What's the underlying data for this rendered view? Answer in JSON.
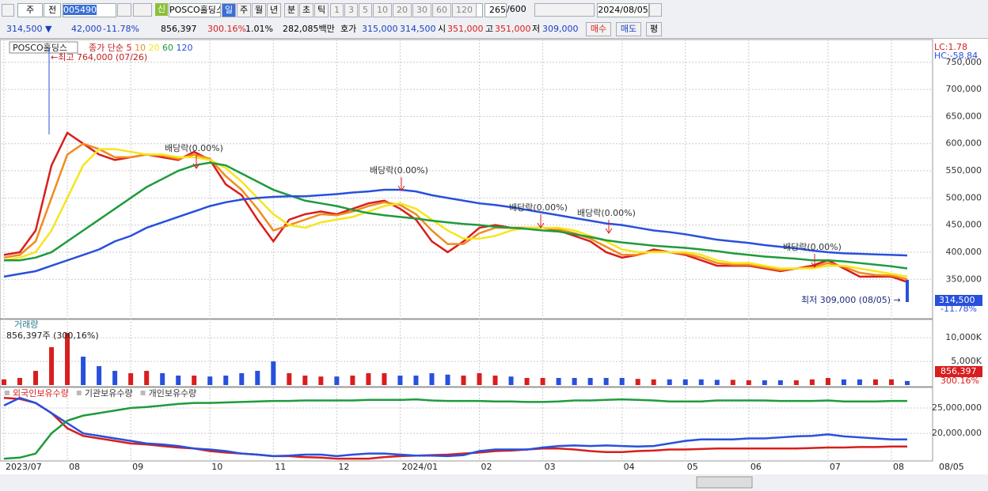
{
  "toolbar": {
    "period": "주",
    "scope": "전",
    "code": "005490",
    "name": "POSCO홀딩스",
    "new_badge": "신",
    "intervals": [
      "일",
      "주",
      "월",
      "년",
      "분",
      "초",
      "틱"
    ],
    "minutes": [
      "1",
      "3",
      "5",
      "10",
      "20",
      "30",
      "60",
      "120"
    ],
    "count": "265",
    "count_max": "/600",
    "date": "2024/08/05"
  },
  "quote": {
    "price": "314,500 ▼",
    "change": "42,000",
    "change_rate": "-11.78%",
    "volume": "856,397",
    "volume_rate": "300.16%",
    "turnover": "1.01%",
    "amount": "282,085백만",
    "bid_label": "호가",
    "ask": "315,000",
    "bid": "314,500",
    "open_label": "시",
    "open": "351,000",
    "high_label": "고",
    "high": "351,000",
    "low_label": "저",
    "low": "309,000",
    "buy": "매수",
    "sell": "매도",
    "eval": "평"
  },
  "chart_data": [
    {
      "type": "line",
      "title": "POSCO홀딩스",
      "legend_label": "종가 단순",
      "categories": [
        "2023/07",
        null,
        null,
        null,
        "08",
        null,
        null,
        null,
        "09",
        null,
        null,
        null,
        null,
        "10",
        null,
        null,
        null,
        "11",
        null,
        null,
        null,
        "12",
        null,
        null,
        null,
        "2024/01",
        null,
        null,
        null,
        null,
        "02",
        null,
        null,
        null,
        "03",
        null,
        null,
        null,
        null,
        "04",
        null,
        null,
        null,
        "05",
        null,
        null,
        null,
        "06",
        null,
        null,
        null,
        null,
        "07",
        null,
        null,
        null,
        "08",
        null
      ],
      "x_end_label": "08/05",
      "series": [
        {
          "name": "5",
          "color": "#d81e1e",
          "values": [
            395000,
            400000,
            440000,
            560000,
            620000,
            600000,
            580000,
            570000,
            575000,
            580000,
            575000,
            570000,
            585000,
            570000,
            525000,
            505000,
            460000,
            420000,
            460000,
            470000,
            475000,
            470000,
            480000,
            490000,
            495000,
            480000,
            460000,
            420000,
            400000,
            420000,
            445000,
            450000,
            445000,
            445000,
            445000,
            440000,
            430000,
            420000,
            400000,
            390000,
            395000,
            405000,
            400000,
            395000,
            385000,
            375000,
            375000,
            375000,
            370000,
            365000,
            370000,
            375000,
            385000,
            370000,
            355000,
            355000,
            355000,
            345000
          ]
        },
        {
          "name": "10",
          "color": "#f08c1e",
          "values": [
            390000,
            395000,
            420000,
            500000,
            580000,
            600000,
            590000,
            575000,
            575000,
            580000,
            578000,
            572000,
            580000,
            572000,
            540000,
            515000,
            480000,
            440000,
            450000,
            460000,
            470000,
            468000,
            475000,
            485000,
            492000,
            487000,
            470000,
            440000,
            415000,
            415000,
            435000,
            445000,
            445000,
            445000,
            445000,
            442000,
            435000,
            425000,
            410000,
            395000,
            395000,
            402000,
            400000,
            397000,
            390000,
            380000,
            377000,
            377000,
            372000,
            367000,
            370000,
            372000,
            380000,
            373000,
            362000,
            358000,
            357000,
            350000
          ]
        },
        {
          "name": "20",
          "color": "#f5e61e",
          "values": [
            385000,
            390000,
            400000,
            440000,
            500000,
            560000,
            590000,
            590000,
            585000,
            580000,
            580000,
            575000,
            575000,
            570000,
            555000,
            530000,
            500000,
            470000,
            450000,
            445000,
            455000,
            460000,
            465000,
            475000,
            485000,
            490000,
            480000,
            460000,
            440000,
            425000,
            425000,
            430000,
            440000,
            445000,
            445000,
            445000,
            440000,
            430000,
            420000,
            405000,
            400000,
            400000,
            400000,
            400000,
            395000,
            385000,
            380000,
            380000,
            375000,
            370000,
            370000,
            370000,
            375000,
            375000,
            370000,
            365000,
            360000,
            355000
          ]
        },
        {
          "name": "60",
          "color": "#1e9b3c",
          "values": [
            385000,
            385000,
            390000,
            400000,
            420000,
            440000,
            460000,
            480000,
            500000,
            520000,
            535000,
            550000,
            560000,
            565000,
            560000,
            545000,
            530000,
            515000,
            505000,
            495000,
            490000,
            485000,
            478000,
            472000,
            468000,
            465000,
            462000,
            458000,
            455000,
            452000,
            450000,
            447000,
            445000,
            443000,
            440000,
            438000,
            433000,
            428000,
            422000,
            418000,
            415000,
            412000,
            410000,
            408000,
            405000,
            402000,
            398000,
            395000,
            392000,
            390000,
            388000,
            385000,
            385000,
            383000,
            380000,
            377000,
            374000,
            370000
          ]
        },
        {
          "name": "120",
          "color": "#2850dc",
          "values": [
            355000,
            360000,
            365000,
            375000,
            385000,
            395000,
            405000,
            420000,
            430000,
            445000,
            455000,
            465000,
            475000,
            485000,
            492000,
            497000,
            500000,
            502000,
            503000,
            503000,
            505000,
            507000,
            510000,
            512000,
            515000,
            515000,
            512000,
            505000,
            500000,
            495000,
            490000,
            487000,
            483000,
            478000,
            473000,
            468000,
            463000,
            458000,
            453000,
            450000,
            445000,
            440000,
            437000,
            433000,
            428000,
            423000,
            420000,
            417000,
            413000,
            410000,
            407000,
            403000,
            400000,
            398000,
            397000,
            396000,
            395000,
            394000
          ]
        }
      ],
      "ylim": [
        279000,
        789000
      ],
      "yticks": [
        {
          "value": 350000,
          "label": "350,000"
        },
        {
          "value": 400000,
          "label": "400,000"
        },
        {
          "value": 450000,
          "label": "450,000"
        },
        {
          "value": 500000,
          "label": "500,000"
        },
        {
          "value": 550000,
          "label": "550,000"
        },
        {
          "value": 600000,
          "label": "600,000"
        },
        {
          "value": 650000,
          "label": "650,000"
        },
        {
          "value": 700000,
          "label": "700,000"
        },
        {
          "value": 750000,
          "label": "750,000"
        }
      ],
      "grid": true,
      "annotations": [
        "←최고 764,000 (07/26)",
        "배당락(0.00%)",
        "배당락(0.00%)",
        "배당락(0.00%)",
        "배당락(0.00%)",
        "배당락(0.00%)",
        "최저 309,000 (08/05) →"
      ],
      "right_labels": [
        "LC:1.78",
        "HC:-58.84",
        "314,500",
        "-11.78%"
      ]
    },
    {
      "type": "bar",
      "title": "거래량",
      "subtitle": "856,397주 (300,16%)",
      "up_color": "#d81e1e",
      "down_color": "#2850dc",
      "values": [
        1200000,
        1500000,
        3000000,
        8000000,
        11000000,
        6000000,
        4000000,
        3000000,
        2500000,
        3000000,
        2500000,
        2000000,
        2000000,
        1800000,
        2000000,
        2500000,
        3000000,
        5000000,
        2500000,
        2000000,
        1800000,
        1800000,
        2000000,
        2500000,
        2500000,
        2000000,
        2000000,
        2500000,
        2200000,
        2000000,
        2500000,
        2000000,
        1800000,
        1500000,
        1500000,
        1500000,
        1500000,
        1500000,
        1500000,
        1500000,
        1300000,
        1200000,
        1200000,
        1200000,
        1200000,
        1100000,
        1100000,
        1000000,
        1000000,
        1000000,
        1000000,
        1200000,
        1500000,
        1200000,
        1200000,
        1200000,
        1200000,
        856397
      ],
      "ylim": [
        0,
        13700000
      ],
      "yticks": [
        {
          "value": 5000000,
          "label": "5,000K"
        },
        {
          "value": 10000000,
          "label": "10,000K"
        }
      ],
      "grid": true,
      "right_labels": [
        "856,397",
        "300.16%"
      ]
    },
    {
      "type": "line",
      "series": [
        {
          "name": "외국인보유수량",
          "color": "#d81e1e",
          "values": [
            27000000,
            26800000,
            26000000,
            24000000,
            21000000,
            19500000,
            19000000,
            18500000,
            18000000,
            17800000,
            17500000,
            17200000,
            17000000,
            16500000,
            16200000,
            16000000,
            15800000,
            15500000,
            15500000,
            15300000,
            15200000,
            15000000,
            15000000,
            15000000,
            15300000,
            15500000,
            15600000,
            15700000,
            15800000,
            16000000,
            16200000,
            16500000,
            16600000,
            16800000,
            17000000,
            17000000,
            16800000,
            16500000,
            16300000,
            16300000,
            16500000,
            16600000,
            16800000,
            16800000,
            16900000,
            17000000,
            17000000,
            17000000,
            17000000,
            17000000,
            17000000,
            17100000,
            17200000,
            17200000,
            17300000,
            17300000,
            17400000,
            17400000
          ]
        },
        {
          "name": "기관보유수량",
          "color": "#2850dc",
          "values": [
            25500000,
            27000000,
            26000000,
            24000000,
            22000000,
            20000000,
            19500000,
            19000000,
            18500000,
            18000000,
            17800000,
            17500000,
            17000000,
            16800000,
            16500000,
            16000000,
            15800000,
            15500000,
            15600000,
            15800000,
            15800000,
            15500000,
            15800000,
            16000000,
            16000000,
            15800000,
            15600000,
            15600000,
            15500000,
            15700000,
            16500000,
            16800000,
            16800000,
            16800000,
            17200000,
            17500000,
            17600000,
            17500000,
            17600000,
            17500000,
            17400000,
            17500000,
            18000000,
            18500000,
            18800000,
            18800000,
            18800000,
            19000000,
            19000000,
            19200000,
            19400000,
            19500000,
            19800000,
            19400000,
            19200000,
            19000000,
            18800000,
            18800000
          ]
        },
        {
          "name": "개인보유수량",
          "color": "#1e9b3c",
          "values": [
            15000000,
            15200000,
            16000000,
            20000000,
            22500000,
            23500000,
            24000000,
            24500000,
            25000000,
            25200000,
            25500000,
            25800000,
            26000000,
            26000000,
            26100000,
            26200000,
            26300000,
            26400000,
            26400000,
            26500000,
            26500000,
            26500000,
            26500000,
            26600000,
            26600000,
            26600000,
            26700000,
            26500000,
            26400000,
            26400000,
            26400000,
            26300000,
            26300000,
            26200000,
            26200000,
            26300000,
            26500000,
            26500000,
            26600000,
            26700000,
            26600000,
            26500000,
            26300000,
            26300000,
            26300000,
            26500000,
            26500000,
            26500000,
            26500000,
            26400000,
            26400000,
            26400000,
            26500000,
            26300000,
            26300000,
            26300000,
            26400000,
            26400000
          ]
        }
      ],
      "ylim": [
        14700000,
        28600000
      ],
      "yticks": [
        {
          "value": 20000000,
          "label": "20,000,000"
        },
        {
          "value": 25000000,
          "label": "25,000,000"
        }
      ],
      "grid": true
    }
  ]
}
